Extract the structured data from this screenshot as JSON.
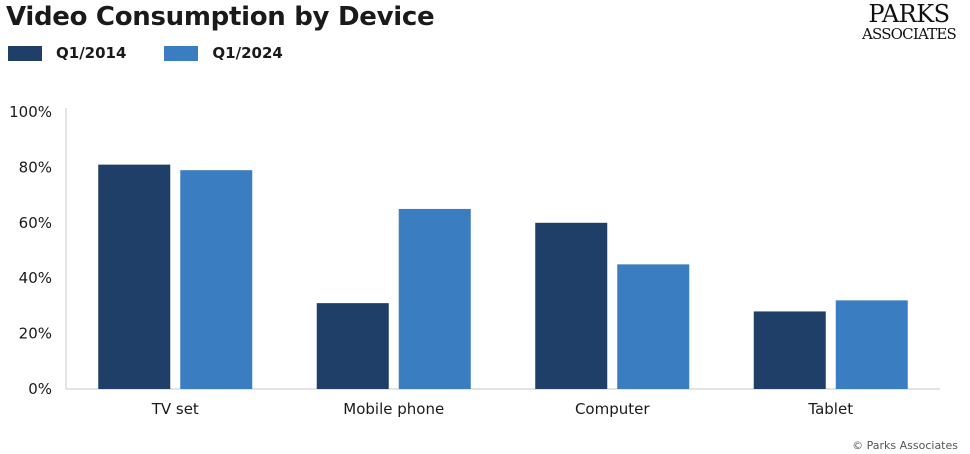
{
  "header": {
    "title": "Video Consumption by Device"
  },
  "logo": {
    "line1": "PARKS",
    "line2": "ASSOCIATES"
  },
  "legend": [
    {
      "label": "Q1/2014",
      "color": "#1f3f69"
    },
    {
      "label": "Q1/2024",
      "color": "#3a7dc0"
    }
  ],
  "source": "© Parks Associates",
  "chart_data": {
    "type": "bar",
    "title": "Video Consumption by Device",
    "xlabel": "",
    "ylabel": "",
    "categories": [
      "TV set",
      "Mobile phone",
      "Computer",
      "Tablet"
    ],
    "series": [
      {
        "name": "Q1/2014",
        "color": "#1f3f69",
        "values": [
          81,
          31,
          60,
          28
        ]
      },
      {
        "name": "Q1/2024",
        "color": "#3a7dc0",
        "values": [
          79,
          65,
          45,
          32
        ]
      }
    ],
    "ylim": [
      0,
      100
    ],
    "yticks": [
      "0%",
      "20%",
      "40%",
      "60%",
      "80%",
      "100%"
    ],
    "grid": false,
    "legend_position": "top-left"
  }
}
